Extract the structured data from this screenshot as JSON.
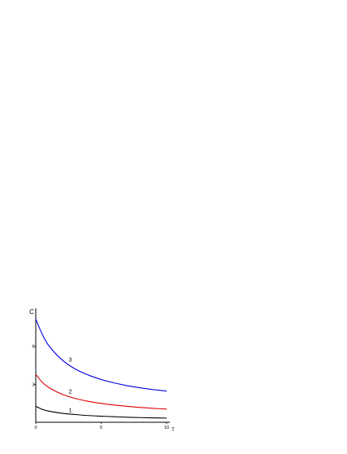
{
  "chart_data": {
    "type": "line",
    "title": "",
    "xlabel": "T",
    "ylabel": "C",
    "xlim": [
      0,
      10
    ],
    "ylim": [
      0,
      9
    ],
    "x_ticks": [
      0,
      5,
      10
    ],
    "y_ticks": [
      3,
      6
    ],
    "x_tick_labels": [
      "0",
      "5",
      "10"
    ],
    "y_tick_labels": [
      "3",
      "6"
    ],
    "grid": false,
    "legend": "none",
    "series": [
      {
        "label": "1",
        "color": "#000000",
        "x": [
          0,
          0.5,
          1,
          2,
          3,
          4,
          5,
          6,
          7,
          8,
          9,
          10
        ],
        "y": [
          1.26,
          1.02,
          0.88,
          0.71,
          0.61,
          0.53,
          0.48,
          0.44,
          0.4,
          0.37,
          0.35,
          0.33
        ]
      },
      {
        "label": "2",
        "color": "#e00000",
        "x": [
          0,
          0.5,
          1,
          2,
          3,
          4,
          5,
          6,
          7,
          8,
          9,
          10
        ],
        "y": [
          3.78,
          3.16,
          2.75,
          2.22,
          1.89,
          1.66,
          1.49,
          1.36,
          1.26,
          1.17,
          1.1,
          1.04
        ]
      },
      {
        "label": "3",
        "color": "#0000e0",
        "x": [
          0,
          0.5,
          1,
          2,
          3,
          4,
          5,
          6,
          7,
          8,
          9,
          10
        ],
        "y": [
          8.15,
          6.95,
          6.05,
          4.94,
          4.22,
          3.74,
          3.38,
          3.11,
          2.89,
          2.72,
          2.58,
          2.46
        ]
      }
    ]
  }
}
